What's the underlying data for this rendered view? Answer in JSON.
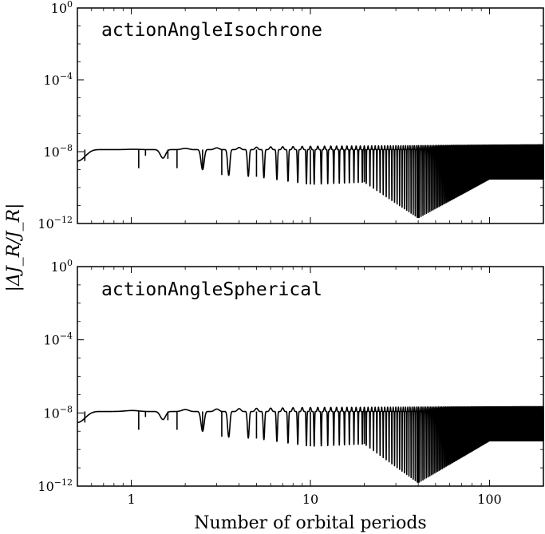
{
  "chart_data": {
    "type": "line",
    "xscale": "log",
    "yscale": "log",
    "xlabel": "Number of orbital periods",
    "ylabel": "|ΔJ_R/J_R|",
    "xlim": [
      0.5,
      200
    ],
    "x_ticks": [
      {
        "value": 1,
        "label": "1"
      },
      {
        "value": 10,
        "label": "10"
      },
      {
        "value": 100,
        "label": "100"
      }
    ],
    "ylim": [
      1e-12,
      1
    ],
    "y_ticks": [
      {
        "value": 1,
        "base": "10",
        "exp": "0"
      },
      {
        "value": 0.0001,
        "base": "10",
        "exp": "−4"
      },
      {
        "value": 1e-08,
        "base": "10",
        "exp": "−8"
      },
      {
        "value": 1e-12,
        "base": "10",
        "exp": "−12"
      }
    ],
    "panels": [
      {
        "label": "actionAngleIsochrone",
        "series": [
          {
            "name": "actionAngleIsochrone",
            "baseline": 1.3e-08,
            "upper_envelope": [
              [
                0.5,
                1.2e-08
              ],
              [
                10,
                2e-08
              ],
              [
                200,
                2.4e-08
              ]
            ],
            "spikes_lower": [
              [
                0.55,
                3e-09
              ],
              [
                1.1,
                1.2e-09
              ],
              [
                1.2,
                6e-09
              ],
              [
                1.6,
                4e-09
              ],
              [
                1.8,
                1.2e-09
              ],
              [
                2.5,
                1e-09
              ],
              [
                3.2,
                5e-10
              ],
              [
                5,
                4e-10
              ],
              [
                10,
                1.5e-10
              ],
              [
                20,
                2e-10
              ],
              [
                40,
                2e-12
              ],
              [
                100,
                3e-10
              ],
              [
                200,
                3e-10
              ]
            ]
          }
        ]
      },
      {
        "label": "actionAngleSpherical",
        "series": [
          {
            "name": "actionAngleSpherical",
            "baseline": 1.2e-08,
            "upper_envelope": [
              [
                0.5,
                1.2e-08
              ],
              [
                10,
                2e-08
              ],
              [
                200,
                2.2e-08
              ]
            ],
            "spikes_lower": [
              [
                0.55,
                3e-09
              ],
              [
                1.1,
                1.2e-09
              ],
              [
                1.2,
                6e-09
              ],
              [
                1.6,
                4e-09
              ],
              [
                1.8,
                1.2e-09
              ],
              [
                2.5,
                1e-09
              ],
              [
                3.2,
                5e-10
              ],
              [
                5,
                4e-10
              ],
              [
                10,
                1.5e-10
              ],
              [
                20,
                2e-10
              ],
              [
                40,
                1.5e-12
              ],
              [
                100,
                3e-10
              ],
              [
                200,
                3e-10
              ]
            ]
          }
        ]
      }
    ]
  }
}
